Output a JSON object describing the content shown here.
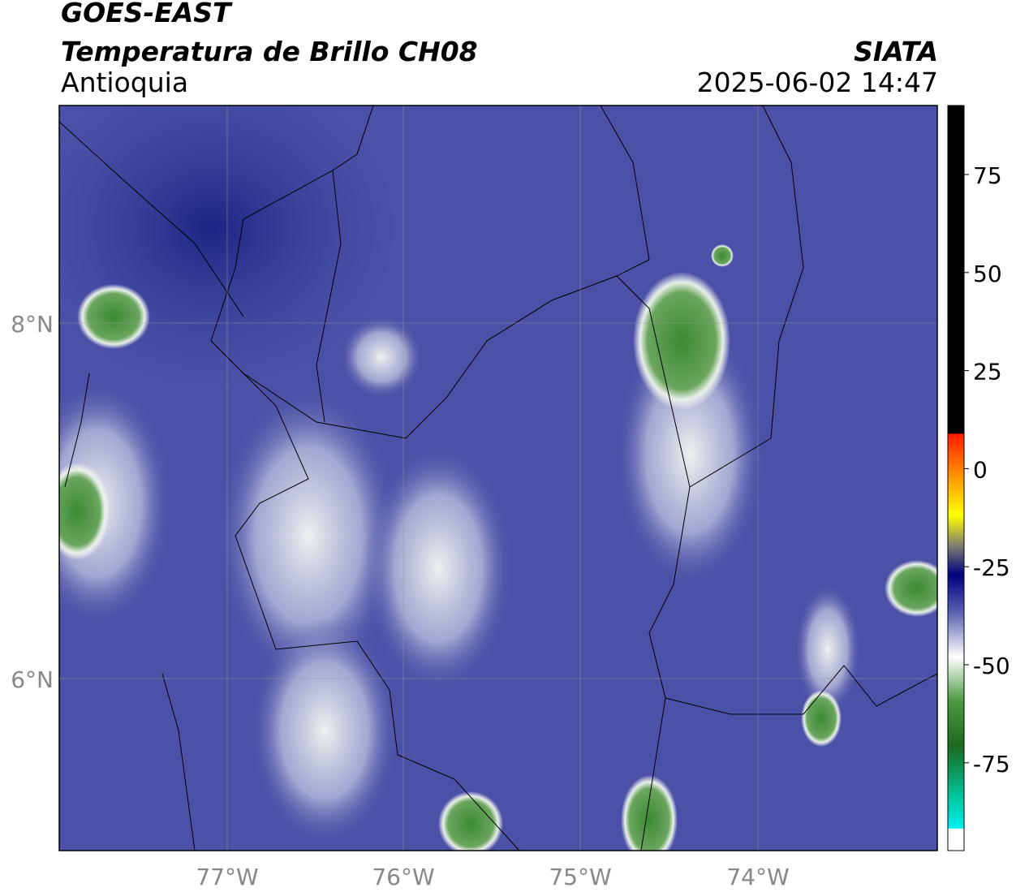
{
  "header": {
    "title": "GOES-EAST",
    "subtitle": "Temperatura de Brillo CH08",
    "region": "Antioquia",
    "source": "SIATA",
    "timestamp": "2025-06-02 14:47"
  },
  "map": {
    "lat_labels": [
      "8°N",
      "6°N"
    ],
    "lon_labels": [
      "77°W",
      "76°W",
      "75°W",
      "74°W"
    ]
  },
  "colorbar": {
    "ticks": [
      "75",
      "50",
      "25",
      "0",
      "-25",
      "-50",
      "-75"
    ]
  }
}
